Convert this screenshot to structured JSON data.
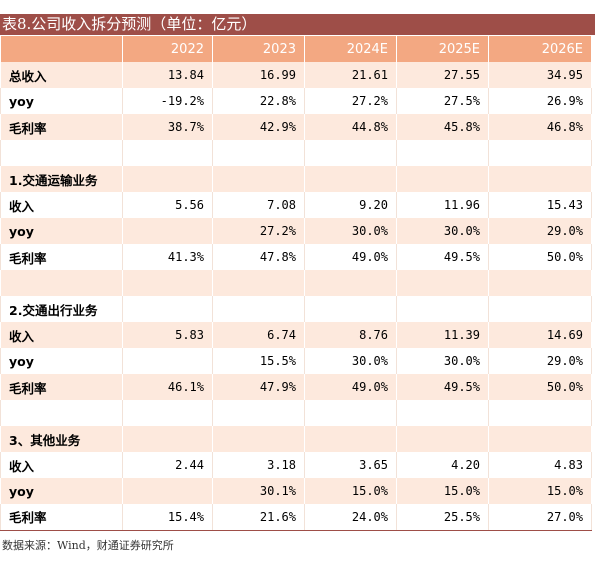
{
  "table": {
    "title": "表8.公司收入拆分预测（单位：亿元）",
    "columns": [
      "2022",
      "2023",
      "2024E",
      "2025E",
      "2026E"
    ],
    "rows": [
      {
        "label": "总收入",
        "values": [
          "13.84",
          "16.99",
          "21.61",
          "27.55",
          "34.95"
        ]
      },
      {
        "label": "yoy",
        "values": [
          "-19.2%",
          "22.8%",
          "27.2%",
          "27.5%",
          "26.9%"
        ]
      },
      {
        "label": "毛利率",
        "values": [
          "38.7%",
          "42.9%",
          "44.8%",
          "45.8%",
          "46.8%"
        ]
      },
      {
        "label": null,
        "values": [
          null,
          null,
          null,
          null,
          null
        ]
      },
      {
        "label": "1.交通运输业务",
        "values": [
          null,
          null,
          null,
          null,
          null
        ]
      },
      {
        "label": "收入",
        "values": [
          "5.56",
          "7.08",
          "9.20",
          "11.96",
          "15.43"
        ]
      },
      {
        "label": "yoy",
        "values": [
          null,
          "27.2%",
          "30.0%",
          "30.0%",
          "29.0%"
        ]
      },
      {
        "label": "毛利率",
        "values": [
          "41.3%",
          "47.8%",
          "49.0%",
          "49.5%",
          "50.0%"
        ]
      },
      {
        "label": null,
        "values": [
          null,
          null,
          null,
          null,
          null
        ]
      },
      {
        "label": "2.交通出行业务",
        "values": [
          null,
          null,
          null,
          null,
          null
        ]
      },
      {
        "label": "收入",
        "values": [
          "5.83",
          "6.74",
          "8.76",
          "11.39",
          "14.69"
        ]
      },
      {
        "label": "yoy",
        "values": [
          null,
          "15.5%",
          "30.0%",
          "30.0%",
          "29.0%"
        ]
      },
      {
        "label": "毛利率",
        "values": [
          "46.1%",
          "47.9%",
          "49.0%",
          "49.5%",
          "50.0%"
        ]
      },
      {
        "label": null,
        "values": [
          null,
          null,
          null,
          null,
          null
        ]
      },
      {
        "label": "3、其他业务",
        "values": [
          null,
          null,
          null,
          null,
          null
        ]
      },
      {
        "label": "收入",
        "values": [
          "2.44",
          "3.18",
          "3.65",
          "4.20",
          "4.83"
        ]
      },
      {
        "label": "yoy",
        "values": [
          null,
          "30.1%",
          "15.0%",
          "15.0%",
          "15.0%"
        ]
      },
      {
        "label": "毛利率",
        "values": [
          "15.4%",
          "21.6%",
          "24.0%",
          "25.5%",
          "27.0%"
        ]
      }
    ],
    "source": "数据来源：Wind，财通证券研究所"
  }
}
